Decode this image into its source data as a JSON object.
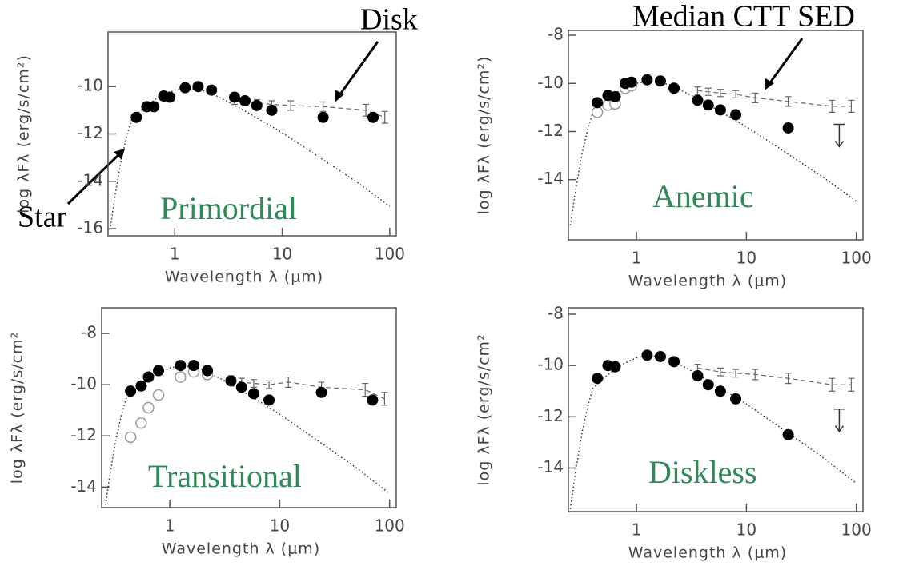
{
  "annotations": [
    {
      "text": "Disk"
    },
    {
      "text": "Star"
    },
    {
      "text": "Median CTT SED"
    }
  ],
  "chart_data": [
    {
      "type": "scatter",
      "label": "Primordial",
      "label_color": "#2e8b57",
      "xlabel": "Wavelength λ (μm)",
      "ylabel": "log λFλ (erg/s/cm²)",
      "xlog": true,
      "xlim": [
        0.24,
        115
      ],
      "ylim": [
        -16.3,
        -7.7
      ],
      "xticks": [
        1,
        10,
        100
      ],
      "yticks": [
        -10,
        -12,
        -14,
        -16
      ],
      "series": [
        {
          "style": "dotted",
          "color": "#333333",
          "x": [
            0.25,
            0.28,
            0.32,
            0.36,
            0.4,
            0.5,
            0.7,
            1,
            1.3,
            2,
            3,
            5,
            10,
            20,
            50,
            100
          ],
          "values": [
            -16.05,
            -14.55,
            -13.05,
            -12.05,
            -11.35,
            -10.95,
            -10.45,
            -10.15,
            -10.05,
            -10.2,
            -10.6,
            -11.15,
            -11.95,
            -12.85,
            -14.05,
            -15.05
          ]
        },
        {
          "style": "dashed",
          "color": "#666666",
          "x": [
            3.6,
            4.5,
            5.8,
            8,
            12,
            24,
            60,
            90
          ],
          "values": [
            -10.6,
            -10.65,
            -10.7,
            -10.75,
            -10.8,
            -10.85,
            -11.0,
            -11.3
          ],
          "errors": [
            0.15,
            0.15,
            0.15,
            0.15,
            0.2,
            0.2,
            0.25,
            0.25
          ]
        },
        {
          "style": "filled",
          "color": "#000000",
          "x": [
            0.44,
            0.55,
            0.64,
            0.79,
            0.9,
            1.25,
            1.65,
            2.2,
            3.6,
            4.5,
            5.8,
            8,
            24,
            70
          ],
          "values": [
            -11.3,
            -10.85,
            -10.85,
            -10.4,
            -10.45,
            -10.05,
            -10.0,
            -10.15,
            -10.45,
            -10.6,
            -10.8,
            -11.0,
            -11.3,
            -11.3
          ]
        }
      ]
    },
    {
      "type": "scatter",
      "label": "Anemic",
      "label_color": "#2e8b57",
      "xlabel": "Wavelength λ (μm)",
      "ylabel": "log λFλ (erg/s/cm²)",
      "xlog": true,
      "xlim": [
        0.24,
        115
      ],
      "ylim": [
        -16.5,
        -7.8
      ],
      "xticks": [
        1,
        10,
        100
      ],
      "yticks": [
        -8,
        -10,
        -12,
        -14
      ],
      "series": [
        {
          "style": "dotted",
          "color": "#333333",
          "x": [
            0.25,
            0.28,
            0.32,
            0.36,
            0.4,
            0.5,
            0.7,
            1,
            1.3,
            2,
            3,
            5,
            10,
            20,
            50,
            100
          ],
          "values": [
            -15.9,
            -14.4,
            -12.9,
            -11.9,
            -11.2,
            -10.8,
            -10.3,
            -10.0,
            -9.9,
            -10.05,
            -10.45,
            -11.0,
            -11.8,
            -12.7,
            -13.9,
            -14.9
          ]
        },
        {
          "style": "dashed",
          "color": "#666666",
          "x": [
            3.6,
            4.5,
            5.8,
            8,
            12,
            24,
            60,
            90
          ],
          "values": [
            -10.3,
            -10.35,
            -10.4,
            -10.45,
            -10.6,
            -10.75,
            -10.95,
            -10.95
          ],
          "errors": [
            0.15,
            0.15,
            0.15,
            0.15,
            0.2,
            0.2,
            0.25,
            0.25
          ]
        },
        {
          "style": "open",
          "color": "#999999",
          "x": [
            0.44,
            0.55,
            0.64,
            0.79,
            0.9
          ],
          "values": [
            -11.2,
            -10.9,
            -10.85,
            -10.2,
            -10.1
          ]
        },
        {
          "style": "filled",
          "color": "#000000",
          "x": [
            0.44,
            0.55,
            0.64,
            0.79,
            0.9,
            1.25,
            1.65,
            2.2,
            3.6,
            4.5,
            5.8,
            8,
            24
          ],
          "values": [
            -10.8,
            -10.5,
            -10.55,
            -10.0,
            -9.95,
            -9.85,
            -9.9,
            -10.2,
            -10.7,
            -10.9,
            -11.1,
            -11.3,
            -11.85
          ]
        },
        {
          "style": "upper_limit",
          "color": "#333333",
          "x": [
            70
          ],
          "values": [
            -11.7
          ]
        }
      ]
    },
    {
      "type": "scatter",
      "label": "Transitional",
      "label_color": "#2e8b57",
      "xlabel": "Wavelength λ (μm)",
      "ylabel": "log λFλ (erg/s/cm²",
      "xlog": true,
      "xlim": [
        0.24,
        115
      ],
      "ylim": [
        -14.8,
        -7.0
      ],
      "xticks": [
        1,
        10,
        100
      ],
      "yticks": [
        -8,
        -10,
        -12,
        -14
      ],
      "series": [
        {
          "style": "dotted",
          "color": "#333333",
          "x": [
            0.25,
            0.28,
            0.32,
            0.36,
            0.4,
            0.5,
            0.7,
            1,
            1.3,
            2,
            3,
            5,
            10,
            20,
            50,
            100
          ],
          "values": [
            -15.25,
            -13.75,
            -12.25,
            -11.25,
            -10.55,
            -10.15,
            -9.65,
            -9.35,
            -9.25,
            -9.4,
            -9.8,
            -10.35,
            -11.15,
            -12.05,
            -13.25,
            -14.25
          ]
        },
        {
          "style": "dashed",
          "color": "#666666",
          "x": [
            3.6,
            4.5,
            5.8,
            8,
            12,
            24,
            60,
            90
          ],
          "values": [
            -9.8,
            -9.9,
            -9.95,
            -10.0,
            -9.9,
            -10.1,
            -10.2,
            -10.55
          ],
          "errors": [
            0.15,
            0.15,
            0.15,
            0.15,
            0.2,
            0.2,
            0.25,
            0.25
          ]
        },
        {
          "style": "open",
          "color": "#999999",
          "x": [
            0.44,
            0.55,
            0.64,
            0.79,
            1.25,
            1.65,
            2.2
          ],
          "values": [
            -12.05,
            -11.5,
            -10.9,
            -10.4,
            -9.7,
            -9.5,
            -9.6
          ]
        },
        {
          "style": "filled",
          "color": "#000000",
          "x": [
            0.44,
            0.55,
            0.64,
            0.79,
            1.25,
            1.65,
            2.2,
            3.6,
            4.5,
            5.8,
            8,
            24,
            70
          ],
          "values": [
            -10.25,
            -10.05,
            -9.7,
            -9.45,
            -9.25,
            -9.25,
            -9.45,
            -9.85,
            -10.1,
            -10.35,
            -10.6,
            -10.3,
            -10.6
          ]
        }
      ]
    },
    {
      "type": "scatter",
      "label": "Diskless",
      "label_color": "#2e8b57",
      "xlabel": "Wavelength λ (μm)",
      "ylabel": "log λFλ (erg/s/cm²",
      "xlog": true,
      "xlim": [
        0.24,
        115
      ],
      "ylim": [
        -15.7,
        -7.75
      ],
      "xticks": [
        1,
        10,
        100
      ],
      "yticks": [
        -8,
        -10,
        -12,
        -14
      ],
      "series": [
        {
          "style": "dotted",
          "color": "#333333",
          "x": [
            0.25,
            0.28,
            0.32,
            0.36,
            0.4,
            0.5,
            0.7,
            1,
            1.3,
            2,
            3,
            5,
            10,
            20,
            50,
            100
          ],
          "values": [
            -15.6,
            -14.1,
            -12.6,
            -11.6,
            -10.9,
            -10.5,
            -10.0,
            -9.7,
            -9.6,
            -9.75,
            -10.15,
            -10.7,
            -11.5,
            -12.4,
            -13.6,
            -14.6
          ]
        },
        {
          "style": "dashed",
          "color": "#666666",
          "x": [
            3.6,
            5.8,
            8,
            12,
            24,
            60,
            90
          ],
          "values": [
            -10.1,
            -10.25,
            -10.3,
            -10.35,
            -10.5,
            -10.75,
            -10.75
          ],
          "errors": [
            0.15,
            0.15,
            0.15,
            0.2,
            0.2,
            0.25,
            0.25
          ]
        },
        {
          "style": "filled",
          "color": "#000000",
          "x": [
            0.44,
            0.55,
            0.64,
            1.25,
            1.65,
            2.2,
            3.6,
            4.5,
            5.8,
            8,
            24
          ],
          "values": [
            -10.5,
            -10.0,
            -10.05,
            -9.6,
            -9.65,
            -9.85,
            -10.4,
            -10.75,
            -11.0,
            -11.3,
            -12.7
          ]
        },
        {
          "style": "upper_limit",
          "color": "#333333",
          "x": [
            70
          ],
          "values": [
            -11.7
          ]
        }
      ]
    }
  ]
}
